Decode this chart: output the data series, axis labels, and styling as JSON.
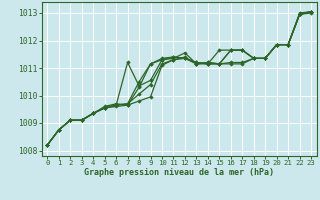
{
  "title": "Graphe pression niveau de la mer (hPa)",
  "bg_color": "#cce8ec",
  "grid_color": "#ffffff",
  "line_color": "#2d6629",
  "xlim": [
    -0.5,
    23.5
  ],
  "ylim": [
    1007.8,
    1013.4
  ],
  "yticks": [
    1008,
    1009,
    1010,
    1011,
    1012,
    1013
  ],
  "xticks": [
    0,
    1,
    2,
    3,
    4,
    5,
    6,
    7,
    8,
    9,
    10,
    11,
    12,
    13,
    14,
    15,
    16,
    17,
    18,
    19,
    20,
    21,
    22,
    23
  ],
  "series": [
    [
      1008.2,
      1008.75,
      1009.1,
      1009.1,
      1009.35,
      1009.55,
      1009.6,
      1009.65,
      1010.3,
      1011.15,
      1011.3,
      1011.35,
      1011.55,
      1011.15,
      1011.2,
      1011.15,
      1011.65,
      1011.65,
      1011.35,
      1011.35,
      1011.85,
      1011.85,
      1012.95,
      1013.05
    ],
    [
      1008.2,
      1008.75,
      1009.1,
      1009.1,
      1009.35,
      1009.55,
      1009.65,
      1009.7,
      1010.05,
      1010.4,
      1011.15,
      1011.3,
      1011.35,
      1011.2,
      1011.15,
      1011.15,
      1011.2,
      1011.2,
      1011.35,
      1011.35,
      1011.85,
      1011.85,
      1012.95,
      1013.05
    ],
    [
      1008.2,
      1008.75,
      1009.1,
      1009.1,
      1009.35,
      1009.55,
      1009.65,
      1009.7,
      1010.5,
      1011.15,
      1011.35,
      1011.4,
      1011.35,
      1011.2,
      1011.15,
      1011.65,
      1011.65,
      1011.65,
      1011.35,
      1011.35,
      1011.85,
      1011.85,
      1012.95,
      1013.0
    ],
    [
      1008.2,
      1008.75,
      1009.1,
      1009.1,
      1009.35,
      1009.6,
      1009.7,
      1009.65,
      1009.8,
      1009.95,
      1011.1,
      1011.3,
      1011.4,
      1011.15,
      1011.15,
      1011.15,
      1011.65,
      1011.65,
      1011.35,
      1011.35,
      1011.85,
      1011.85,
      1013.0,
      1013.05
    ],
    [
      1008.2,
      1008.75,
      1009.1,
      1009.1,
      1009.35,
      1009.55,
      1009.65,
      1011.2,
      1010.35,
      1010.55,
      1011.3,
      1011.4,
      1011.35,
      1011.15,
      1011.2,
      1011.15,
      1011.15,
      1011.15,
      1011.35,
      1011.35,
      1011.85,
      1011.85,
      1012.95,
      1013.05
    ]
  ]
}
